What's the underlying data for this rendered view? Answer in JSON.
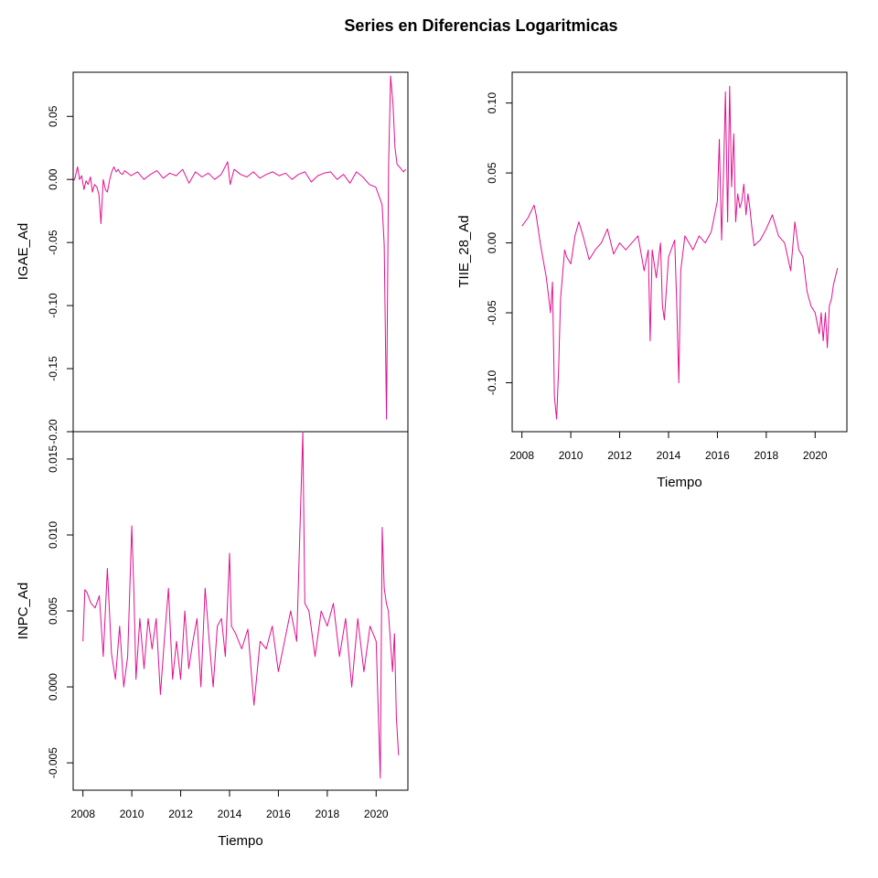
{
  "chart_data": {
    "type": "line",
    "title": "Series en Diferencias Logaritmicas",
    "color": "#E0118F",
    "panels": [
      {
        "name": "igae",
        "ylabel": "IGAE_Ad",
        "xlabel": "",
        "xlim": [
          2008,
          2021
        ],
        "ylim": [
          -0.2,
          0.085
        ],
        "yticks": [
          0.05,
          0.0,
          -0.05,
          -0.1,
          -0.15,
          -0.2
        ],
        "ytick_labels": [
          "0.05",
          "0.00",
          "-0.05",
          "-0.10",
          "-0.15",
          "-0.20"
        ],
        "xticks": [],
        "xtick_labels": [],
        "x": [
          2008.0,
          2008.08,
          2008.17,
          2008.25,
          2008.33,
          2008.42,
          2008.5,
          2008.58,
          2008.67,
          2008.75,
          2008.83,
          2008.92,
          2009.0,
          2009.08,
          2009.17,
          2009.25,
          2009.33,
          2009.42,
          2009.5,
          2009.58,
          2009.67,
          2009.75,
          2009.83,
          2009.92,
          2010.0,
          2010.25,
          2010.5,
          2010.75,
          2011.0,
          2011.25,
          2011.5,
          2011.75,
          2012.0,
          2012.25,
          2012.5,
          2012.75,
          2013.0,
          2013.25,
          2013.5,
          2013.75,
          2014.0,
          2014.1,
          2014.25,
          2014.5,
          2014.75,
          2015.0,
          2015.25,
          2015.5,
          2015.75,
          2016.0,
          2016.25,
          2016.5,
          2016.75,
          2017.0,
          2017.25,
          2017.5,
          2017.75,
          2018.0,
          2018.25,
          2018.5,
          2018.75,
          2019.0,
          2019.25,
          2019.5,
          2019.75,
          2020.0,
          2020.08,
          2020.17,
          2020.25,
          2020.33,
          2020.42,
          2020.5,
          2020.58,
          2020.67,
          2020.75,
          2020.83,
          2020.92
        ],
        "y": [
          -0.002,
          0.002,
          0.01,
          0.0,
          0.003,
          -0.008,
          -0.001,
          -0.004,
          0.002,
          -0.01,
          -0.004,
          -0.006,
          -0.012,
          -0.035,
          0.0,
          -0.008,
          -0.01,
          0.0,
          0.006,
          0.01,
          0.006,
          0.008,
          0.005,
          0.004,
          0.007,
          0.003,
          0.006,
          0.0,
          0.004,
          0.007,
          0.001,
          0.005,
          0.003,
          0.008,
          -0.003,
          0.006,
          0.002,
          0.005,
          0.0,
          0.004,
          0.014,
          -0.004,
          0.008,
          0.004,
          0.002,
          0.006,
          0.001,
          0.004,
          0.006,
          0.003,
          0.005,
          0.0,
          0.004,
          0.006,
          -0.002,
          0.003,
          0.005,
          0.006,
          0.0,
          0.004,
          -0.003,
          0.006,
          0.002,
          -0.004,
          -0.006,
          -0.02,
          -0.052,
          -0.19,
          0.012,
          0.082,
          0.06,
          0.025,
          0.012,
          0.01,
          0.008,
          0.006,
          0.008
        ]
      },
      {
        "name": "inpc",
        "ylabel": "INPC_Ad",
        "xlabel": "Tiempo",
        "xlim": [
          2007.6,
          2021.3
        ],
        "ylim": [
          -0.0068,
          0.0168
        ],
        "yticks": [
          0.015,
          0.01,
          0.005,
          0.0,
          -0.005
        ],
        "ytick_labels": [
          "0.015",
          "0.010",
          "0.005",
          "0.000",
          "-0.005"
        ],
        "xticks": [
          2008,
          2010,
          2012,
          2014,
          2016,
          2018,
          2020
        ],
        "xtick_labels": [
          "2008",
          "2010",
          "2012",
          "2014",
          "2016",
          "2018",
          "2020"
        ],
        "x": [
          2008.0,
          2008.08,
          2008.17,
          2008.33,
          2008.5,
          2008.67,
          2008.83,
          2009.0,
          2009.17,
          2009.33,
          2009.5,
          2009.67,
          2009.83,
          2010.0,
          2010.08,
          2010.17,
          2010.33,
          2010.5,
          2010.67,
          2010.83,
          2011.0,
          2011.17,
          2011.33,
          2011.5,
          2011.67,
          2011.83,
          2012.0,
          2012.17,
          2012.33,
          2012.5,
          2012.67,
          2012.83,
          2013.0,
          2013.17,
          2013.33,
          2013.5,
          2013.67,
          2013.83,
          2014.0,
          2014.08,
          2014.25,
          2014.5,
          2014.75,
          2015.0,
          2015.25,
          2015.5,
          2015.75,
          2016.0,
          2016.25,
          2016.5,
          2016.75,
          2017.0,
          2017.08,
          2017.25,
          2017.5,
          2017.75,
          2018.0,
          2018.25,
          2018.5,
          2018.75,
          2019.0,
          2019.25,
          2019.5,
          2019.75,
          2020.0,
          2020.17,
          2020.25,
          2020.33,
          2020.42,
          2020.5,
          2020.67,
          2020.75,
          2020.83,
          2020.92
        ],
        "y": [
          0.003,
          0.0064,
          0.0062,
          0.0055,
          0.0052,
          0.006,
          0.002,
          0.0078,
          0.0022,
          0.0005,
          0.004,
          0.0,
          0.002,
          0.0106,
          0.0065,
          0.0005,
          0.0045,
          0.0012,
          0.0045,
          0.0025,
          0.0045,
          -0.0005,
          0.003,
          0.0065,
          0.0005,
          0.003,
          0.0005,
          0.005,
          0.0012,
          0.003,
          0.0045,
          0.0,
          0.0065,
          0.003,
          0.0,
          0.004,
          0.0045,
          0.002,
          0.0088,
          0.004,
          0.0035,
          0.0025,
          0.0038,
          -0.0012,
          0.003,
          0.0025,
          0.004,
          0.001,
          0.003,
          0.005,
          0.003,
          0.0168,
          0.0055,
          0.005,
          0.002,
          0.005,
          0.004,
          0.0055,
          0.002,
          0.0045,
          0.0,
          0.0045,
          0.001,
          0.004,
          0.003,
          -0.006,
          0.0105,
          0.0065,
          0.0055,
          0.005,
          0.001,
          0.0035,
          -0.002,
          -0.0045
        ]
      },
      {
        "name": "tiie",
        "ylabel": "TIIE_28_Ad",
        "xlabel": "Tiempo",
        "xlim": [
          2007.6,
          2021.3
        ],
        "ylim": [
          -0.135,
          0.122
        ],
        "yticks": [
          0.1,
          0.05,
          0.0,
          -0.05,
          -0.1
        ],
        "ytick_labels": [
          "0.10",
          "0.05",
          "0.00",
          "-0.05",
          "-0.10"
        ],
        "xticks": [
          2008,
          2010,
          2012,
          2014,
          2016,
          2018,
          2020
        ],
        "xtick_labels": [
          "2008",
          "2010",
          "2012",
          "2014",
          "2016",
          "2018",
          "2020"
        ],
        "x": [
          2008.0,
          2008.25,
          2008.5,
          2008.58,
          2008.75,
          2009.0,
          2009.17,
          2009.25,
          2009.33,
          2009.42,
          2009.5,
          2009.58,
          2009.75,
          2009.83,
          2010.0,
          2010.17,
          2010.33,
          2010.5,
          2010.75,
          2011.0,
          2011.25,
          2011.5,
          2011.75,
          2012.0,
          2012.25,
          2012.5,
          2012.75,
          2013.0,
          2013.17,
          2013.25,
          2013.33,
          2013.5,
          2013.67,
          2013.75,
          2013.83,
          2014.0,
          2014.25,
          2014.33,
          2014.42,
          2014.5,
          2014.67,
          2015.0,
          2015.25,
          2015.5,
          2015.75,
          2016.0,
          2016.08,
          2016.17,
          2016.25,
          2016.33,
          2016.42,
          2016.5,
          2016.58,
          2016.67,
          2016.75,
          2016.83,
          2016.92,
          2017.0,
          2017.08,
          2017.17,
          2017.25,
          2017.33,
          2017.42,
          2017.5,
          2017.75,
          2018.0,
          2018.25,
          2018.5,
          2018.75,
          2019.0,
          2019.17,
          2019.33,
          2019.5,
          2019.67,
          2019.83,
          2020.0,
          2020.17,
          2020.25,
          2020.33,
          2020.42,
          2020.5,
          2020.58,
          2020.67,
          2020.75,
          2020.92
        ],
        "y": [
          0.012,
          0.018,
          0.027,
          0.02,
          0.0,
          -0.025,
          -0.05,
          -0.028,
          -0.11,
          -0.126,
          -0.09,
          -0.04,
          -0.005,
          -0.01,
          -0.015,
          0.005,
          0.015,
          0.005,
          -0.012,
          -0.005,
          0.0,
          0.01,
          -0.008,
          0.0,
          -0.005,
          0.0,
          0.005,
          -0.02,
          -0.005,
          -0.07,
          -0.005,
          -0.025,
          0.0,
          -0.045,
          -0.055,
          -0.01,
          0.002,
          -0.04,
          -0.1,
          -0.02,
          0.005,
          -0.005,
          0.005,
          0.0,
          0.008,
          0.03,
          0.074,
          0.002,
          0.05,
          0.108,
          0.015,
          0.112,
          0.04,
          0.078,
          0.015,
          0.035,
          0.025,
          0.03,
          0.042,
          0.02,
          0.035,
          0.025,
          0.01,
          -0.002,
          0.002,
          0.01,
          0.02,
          0.005,
          0.0,
          -0.02,
          0.015,
          -0.005,
          -0.01,
          -0.035,
          -0.045,
          -0.05,
          -0.065,
          -0.05,
          -0.07,
          -0.05,
          -0.075,
          -0.045,
          -0.04,
          -0.03,
          -0.018
        ]
      }
    ]
  }
}
